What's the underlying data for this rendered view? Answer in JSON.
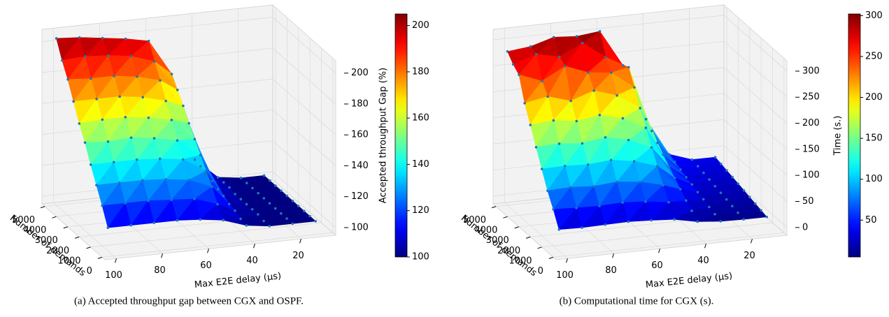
{
  "chart_data": [
    {
      "type": "surface3d",
      "caption": "(a) Accepted throughput gap between CGX and OSPF.",
      "xlabel": "Max E2E delay (μs)",
      "ylabel": "Number of demands",
      "colorbar_label": "Accepted throughput Gap (%)",
      "colormap": "jet",
      "marker_color": "#1f77b4",
      "x": [
        10,
        20,
        30,
        40,
        50,
        60,
        70,
        80,
        90,
        100
      ],
      "y": [
        500,
        1000,
        1500,
        2000,
        2500,
        3000,
        3500,
        4000,
        4500,
        5000
      ],
      "z": [
        [
          100,
          100,
          100,
          102,
          107,
          109,
          110,
          110,
          110,
          110
        ],
        [
          100,
          100,
          100,
          103,
          114,
          119,
          120,
          121,
          121,
          121
        ],
        [
          100,
          100,
          101,
          105,
          122,
          128,
          130,
          131,
          131,
          131
        ],
        [
          100,
          100,
          101,
          106,
          129,
          138,
          140,
          141,
          141,
          141
        ],
        [
          100,
          100,
          101,
          108,
          136,
          147,
          150,
          152,
          151,
          152
        ],
        [
          100,
          100,
          101,
          109,
          143,
          157,
          160,
          162,
          162,
          161
        ],
        [
          100,
          100,
          101,
          111,
          150,
          166,
          170,
          172,
          172,
          172
        ],
        [
          100,
          100,
          102,
          112,
          158,
          176,
          180,
          182,
          182,
          183
        ],
        [
          100,
          100,
          102,
          114,
          165,
          185,
          190,
          192,
          193,
          192
        ],
        [
          100,
          100,
          102,
          115,
          172,
          195,
          198,
          200,
          202,
          203
        ]
      ],
      "xlim": [
        5,
        105
      ],
      "ylim": [
        -250,
        5250
      ],
      "zlim": [
        95,
        208
      ],
      "xticks": [
        20,
        40,
        60,
        80,
        100
      ],
      "yticks": [
        0,
        1000,
        2000,
        3000,
        4000,
        5000
      ],
      "zticks": [
        100,
        120,
        140,
        160,
        180,
        200
      ],
      "clim": [
        100,
        205
      ],
      "cticks": [
        100,
        120,
        140,
        160,
        180,
        200
      ],
      "grid": true
    },
    {
      "type": "surface3d",
      "caption": "(b) Computational time for CGX (s).",
      "xlabel": "Max E2E delay (μs)",
      "ylabel": "Number of demands",
      "colorbar_label": "Time (s.)",
      "colormap": "jet",
      "marker_color": "#1f77b4",
      "x": [
        10,
        20,
        30,
        40,
        50,
        60,
        70,
        80,
        90,
        100
      ],
      "y": [
        500,
        1000,
        1500,
        2000,
        2500,
        3000,
        3500,
        4000,
        4500,
        5000
      ],
      "z": [
        [
          8,
          8,
          9,
          13,
          22,
          25,
          27,
          26,
          25,
          26
        ],
        [
          11,
          11,
          13,
          24,
          45,
          51,
          54,
          52,
          53,
          55
        ],
        [
          14,
          14,
          17,
          34,
          68,
          79,
          84,
          80,
          83,
          81
        ],
        [
          17,
          17,
          22,
          46,
          95,
          109,
          116,
          112,
          114,
          113
        ],
        [
          20,
          20,
          26,
          58,
          121,
          140,
          150,
          143,
          147,
          145
        ],
        [
          23,
          23,
          31,
          70,
          149,
          172,
          183,
          176,
          182,
          178
        ],
        [
          26,
          26,
          35,
          83,
          177,
          206,
          220,
          205,
          218,
          210
        ],
        [
          29,
          29,
          40,
          96,
          207,
          240,
          245,
          262,
          238,
          255
        ],
        [
          32,
          32,
          45,
          109,
          236,
          260,
          292,
          270,
          280,
          265
        ],
        [
          35,
          35,
          50,
          122,
          230,
          300,
          295,
          298,
          285,
          280
        ]
      ],
      "xlim": [
        5,
        105
      ],
      "ylim": [
        -250,
        5250
      ],
      "zlim": [
        -15,
        320
      ],
      "xticks": [
        20,
        40,
        60,
        80,
        100
      ],
      "yticks": [
        0,
        1000,
        2000,
        3000,
        4000,
        5000
      ],
      "zticks": [
        0,
        50,
        100,
        150,
        200,
        250,
        300
      ],
      "clim": [
        5,
        302
      ],
      "cticks": [
        50,
        100,
        150,
        200,
        250,
        300
      ],
      "grid": true
    }
  ]
}
